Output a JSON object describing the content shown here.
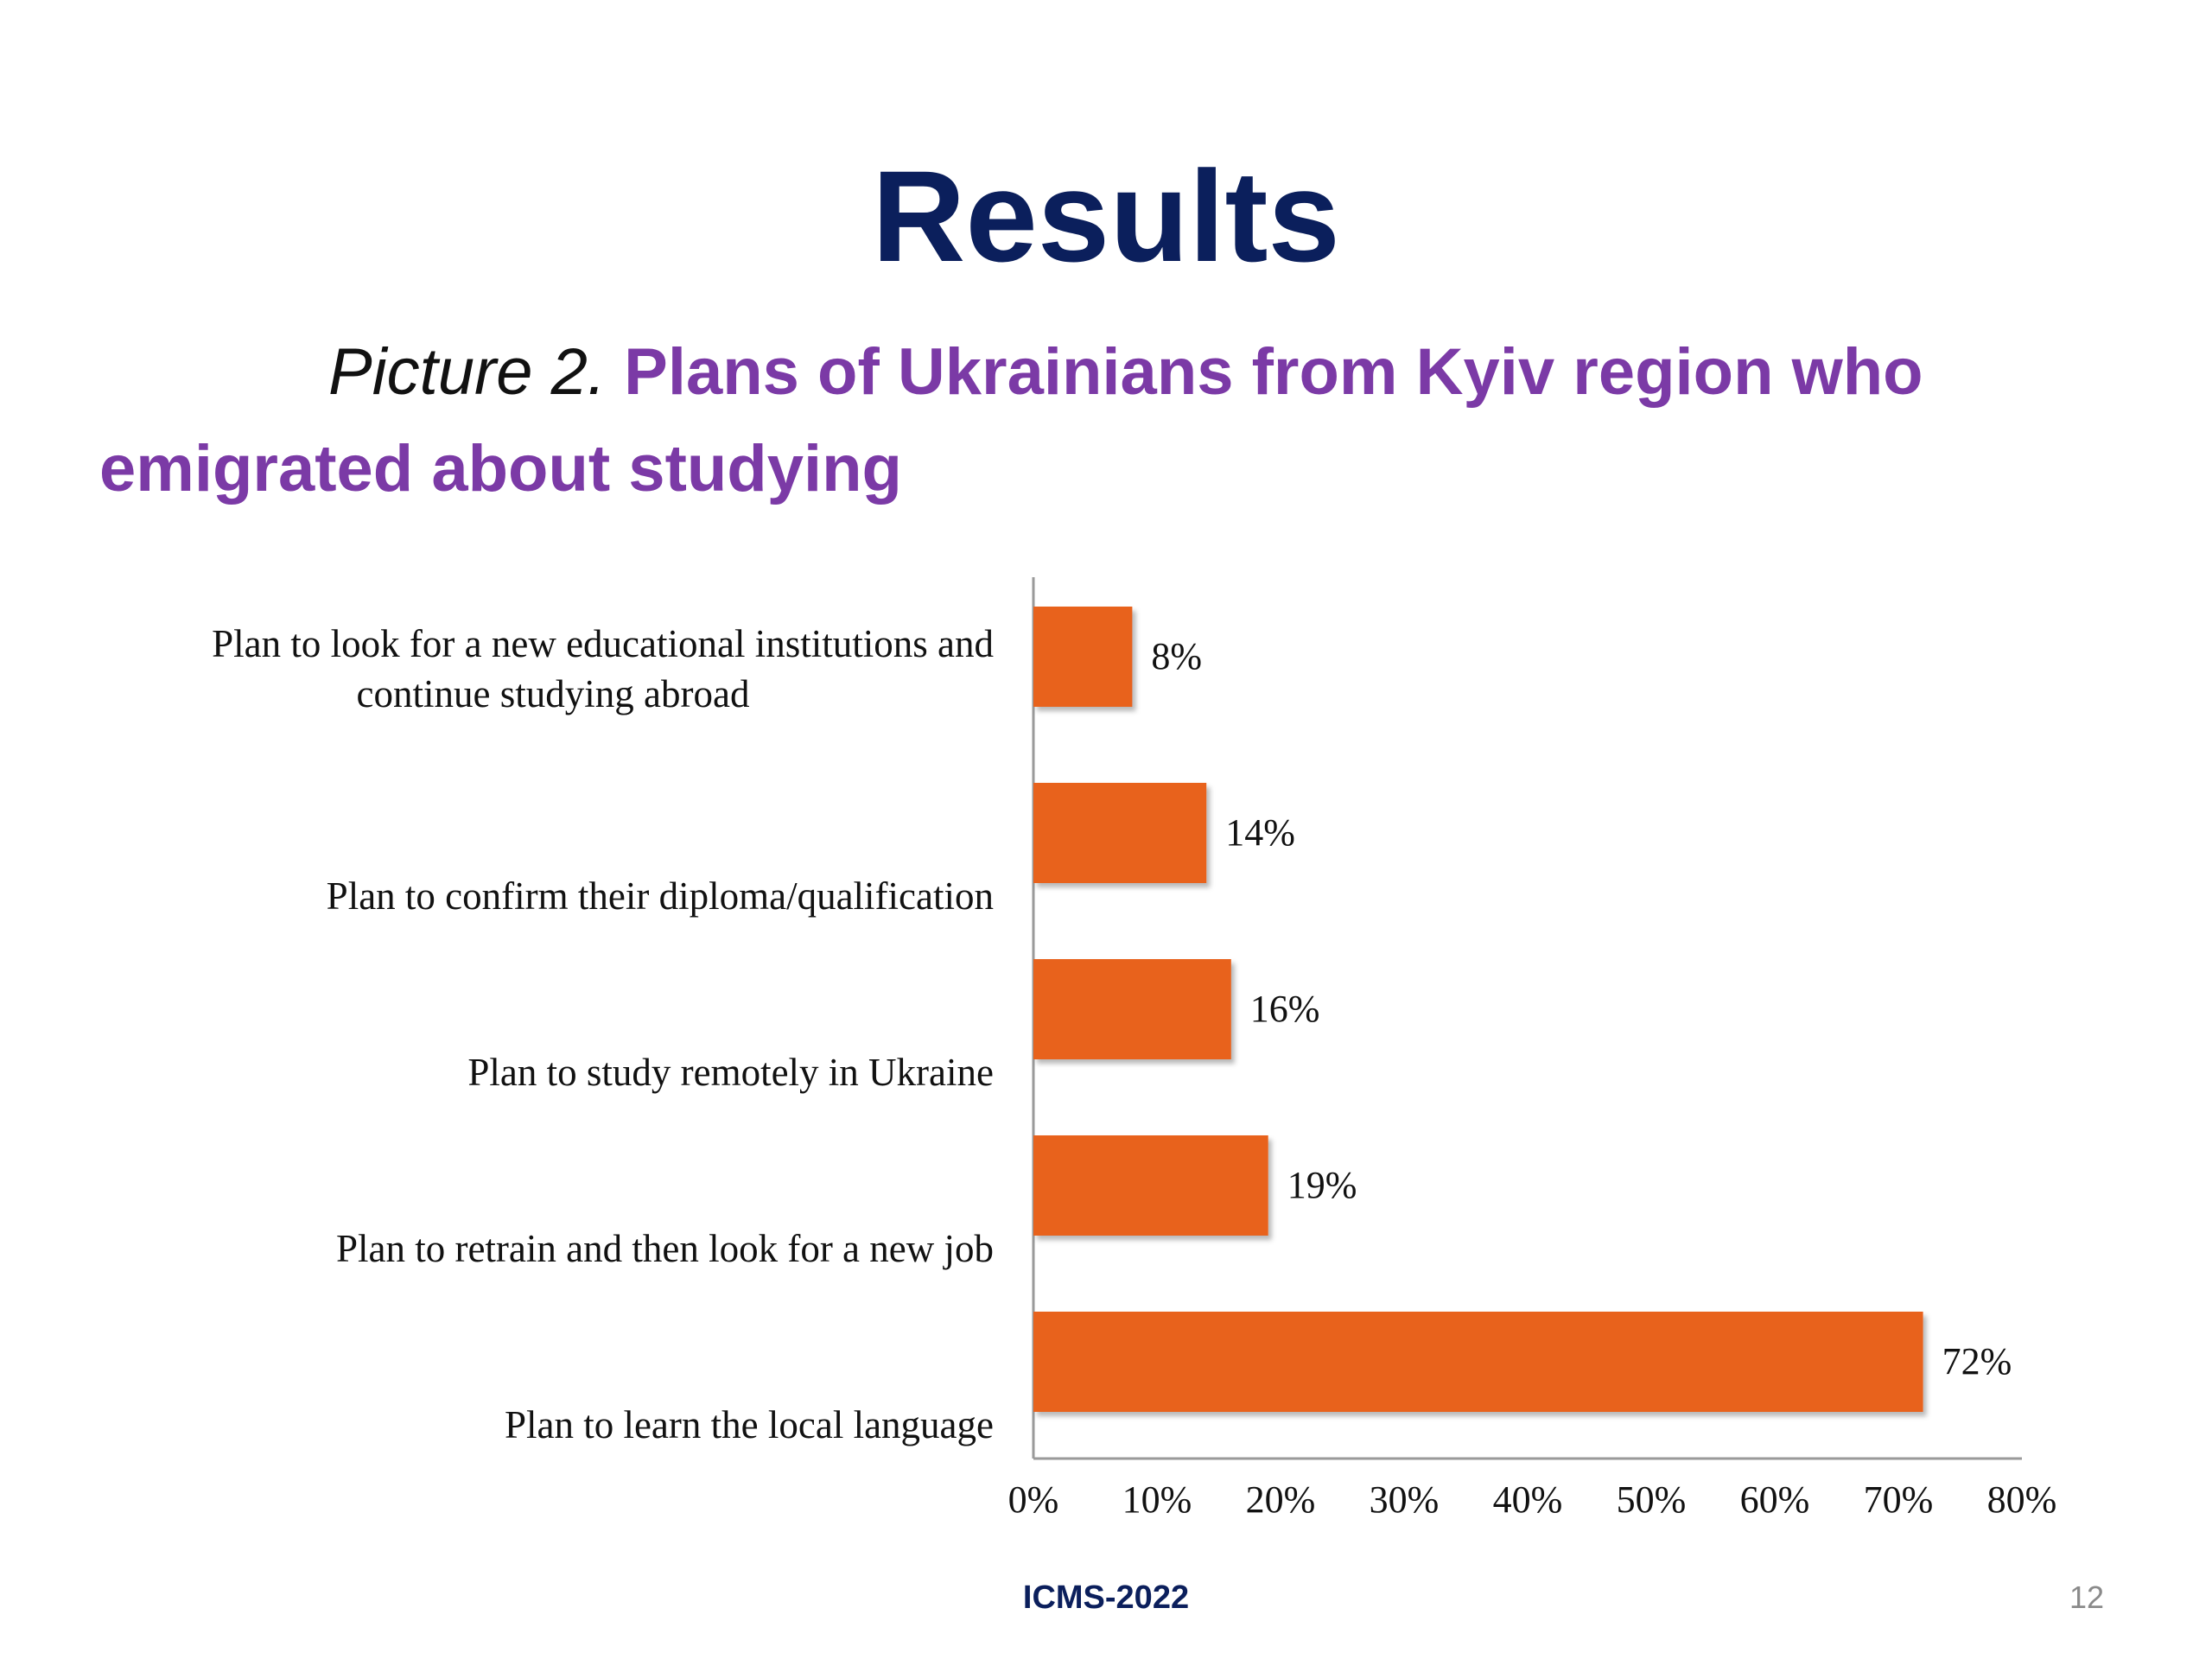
{
  "slide": {
    "title": "Results",
    "caption_prefix": "Picture  2.",
    "caption_title": "Plans of Ukrainians from Kyiv region who emigrated about studying",
    "footer": "ICMS-2022",
    "page_number": "12"
  },
  "colors": {
    "title": "#0b1f5c",
    "caption": "#7b3aa6",
    "bar": "#e8621f",
    "axis": "#9a9a9a"
  },
  "chart_data": {
    "type": "bar",
    "orientation": "horizontal",
    "categories": [
      "Plan to look for a new educational institutions and continue studying abroad",
      "Plan to confirm their diploma/qualification",
      "Plan to study remotely in Ukraine",
      "Plan to retrain and then look for a new job",
      "Plan to learn the local language"
    ],
    "category_lines": [
      [
        "Plan to look for a new educational institutions and",
        "continue studying abroad"
      ],
      [
        "Plan to confirm their diploma/qualification"
      ],
      [
        "Plan to study remotely in Ukraine"
      ],
      [
        "Plan to retrain and then look for a new job"
      ],
      [
        "Plan to learn the local language"
      ]
    ],
    "values": [
      8,
      14,
      16,
      19,
      72
    ],
    "data_labels": [
      "8%",
      "14%",
      "16%",
      "19%",
      "72%"
    ],
    "xlim": [
      0,
      80
    ],
    "xticks": [
      0,
      10,
      20,
      30,
      40,
      50,
      60,
      70,
      80
    ],
    "xtick_labels": [
      "0%",
      "10%",
      "20%",
      "30%",
      "40%",
      "50%",
      "60%",
      "70%",
      "80%"
    ],
    "grid": false,
    "legend": "none"
  }
}
